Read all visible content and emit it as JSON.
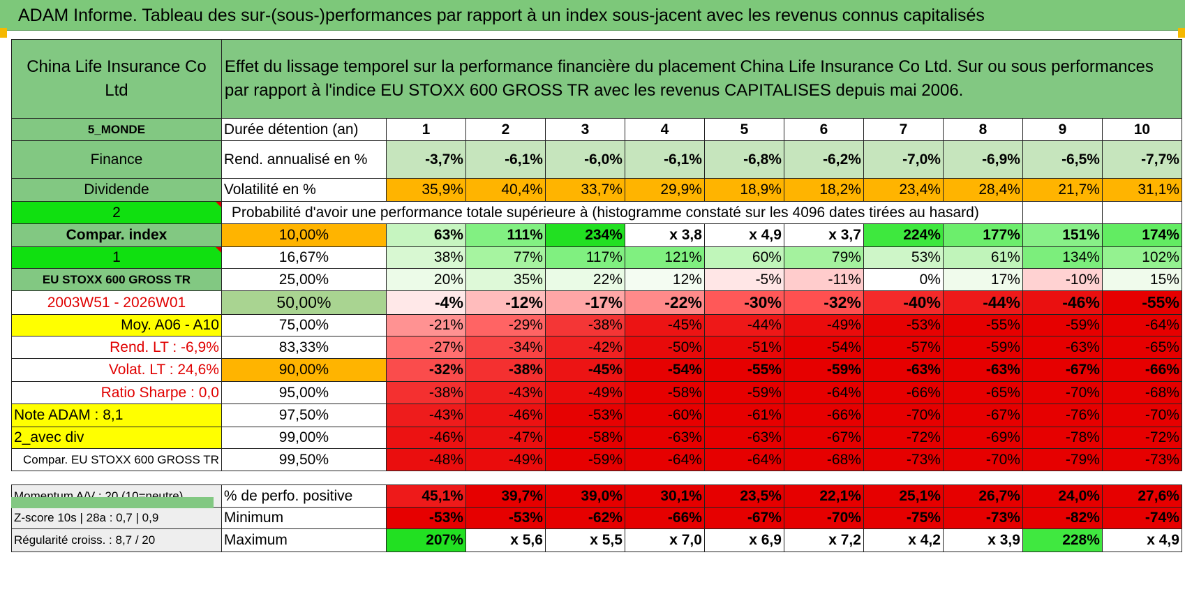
{
  "title": "ADAM Informe. Tableau des sur-(sous-)performances par rapport à un index sous-jacent avec les revenus connus capitalisés",
  "header": {
    "company": "China Life Insurance Co Ltd",
    "description": "Effet du lissage temporel sur la performance financière du placement China Life Insurance Co Ltd. Sur ou sous performances par rapport à l'indice EU STOXX 600 GROSS TR avec les revenus CAPITALISES depuis mai 2006."
  },
  "left_labels": {
    "region": "5_MONDE",
    "sector": "Finance",
    "type": "Dividende",
    "code1": "2",
    "compar": "Compar. index",
    "code2": "1",
    "index_name": "EU STOXX 600 GROSS TR",
    "period": "2003W51 - 2026W01",
    "moy": "Moy. A06 - A10",
    "rend_lt": "Rend. LT :    -6,9%",
    "volat_lt": "Volat. LT :    24,6%",
    "sharpe": "Ratio Sharpe :     0,0",
    "note": "Note ADAM : 8,1",
    "avec_div": "2_avec div",
    "compar_index": "Compar. EU STOXX 600 GROSS TR",
    "momentum": "Momentum A/V : 20 (10=neutre)",
    "zscore": "Z-score 10s | 28a : 0,7 | 0,9",
    "regularite": "Régularité croiss. : 8,7 / 20"
  },
  "row_labels": {
    "duree": "Durée détention (an)",
    "rend": "Rend. annualisé en %",
    "vol": "Volatilité en %",
    "proba": "Probabilité d'avoir une performance totale supérieure à (histogramme constaté sur les 4096 dates tirées au hasard)",
    "positive": "% de perfo. positive",
    "minimum": "Minimum",
    "maximum": "Maximum"
  },
  "years": [
    "1",
    "2",
    "3",
    "4",
    "5",
    "6",
    "7",
    "8",
    "9",
    "10"
  ],
  "rend": [
    "-3,7%",
    "-6,1%",
    "-6,0%",
    "-6,1%",
    "-6,8%",
    "-6,2%",
    "-7,0%",
    "-6,9%",
    "-6,5%",
    "-7,7%"
  ],
  "vol": [
    "35,9%",
    "40,4%",
    "33,7%",
    "29,9%",
    "18,9%",
    "18,2%",
    "23,4%",
    "28,4%",
    "21,7%",
    "31,1%"
  ],
  "percentiles": [
    {
      "p": "10,00%",
      "values": [
        "63%",
        "111%",
        "234%",
        "x 3,8",
        "x 4,9",
        "x 3,7",
        "224%",
        "177%",
        "151%",
        "174%"
      ],
      "colors": [
        "#c6f5c0",
        "#82f082",
        "#22e022",
        "#ffffff",
        "#ffffff",
        "#ffffff",
        "#3ee83e",
        "#6cee6c",
        "#88f088",
        "#62ec62"
      ]
    },
    {
      "p": "16,67%",
      "values": [
        "38%",
        "77%",
        "117%",
        "121%",
        "60%",
        "79%",
        "53%",
        "61%",
        "134%",
        "102%"
      ],
      "colors": [
        "#d8f8d2",
        "#a6f4a0",
        "#80f080",
        "#80f080",
        "#c0f6ba",
        "#a4f29e",
        "#cef6c8",
        "#c0f4ba",
        "#7cee7c",
        "#94f290"
      ]
    },
    {
      "p": "25,00%",
      "values": [
        "20%",
        "35%",
        "22%",
        "12%",
        "-5%",
        "-11%",
        "0%",
        "17%",
        "-10%",
        "15%"
      ],
      "colors": [
        "#ecfbe8",
        "#def9d8",
        "#eafbe6",
        "#f4fcf2",
        "#ffe6e6",
        "#ffcccc",
        "#ffffff",
        "#f0fbec",
        "#ffd2d2",
        "#f0fbec"
      ]
    },
    {
      "p": "50,00%",
      "values": [
        "-4%",
        "-12%",
        "-17%",
        "-22%",
        "-30%",
        "-32%",
        "-40%",
        "-44%",
        "-46%",
        "-55%"
      ],
      "colors": [
        "#ffe8e8",
        "#ffbcbc",
        "#ffa6a6",
        "#ff8a8a",
        "#ff5858",
        "#ff5050",
        "#f42a2a",
        "#ee1a1a",
        "#ea1010",
        "#e60000"
      ]
    },
    {
      "p": "75,00%",
      "values": [
        "-21%",
        "-29%",
        "-38%",
        "-45%",
        "-44%",
        "-49%",
        "-53%",
        "-55%",
        "-59%",
        "-64%"
      ],
      "colors": [
        "#ff9292",
        "#ff6464",
        "#f43636",
        "#ec1414",
        "#ee1818",
        "#ea0c0c",
        "#e60202",
        "#e60000",
        "#e60000",
        "#e60000"
      ]
    },
    {
      "p": "83,33%",
      "values": [
        "-27%",
        "-34%",
        "-42%",
        "-50%",
        "-51%",
        "-54%",
        "-57%",
        "-59%",
        "-63%",
        "-65%"
      ],
      "colors": [
        "#ff7070",
        "#f84444",
        "#f02222",
        "#e80a0a",
        "#e80808",
        "#e60000",
        "#e60000",
        "#e60000",
        "#e60000",
        "#e60000"
      ]
    },
    {
      "p": "90,00%",
      "values": [
        "-32%",
        "-38%",
        "-45%",
        "-54%",
        "-55%",
        "-59%",
        "-63%",
        "-63%",
        "-67%",
        "-66%"
      ],
      "colors": [
        "#fa4c4c",
        "#f43030",
        "#ec1414",
        "#e60202",
        "#e60000",
        "#e60000",
        "#e60000",
        "#e60000",
        "#e60000",
        "#e60000"
      ]
    },
    {
      "p": "95,00%",
      "values": [
        "-38%",
        "-43%",
        "-49%",
        "-58%",
        "-59%",
        "-64%",
        "-66%",
        "-65%",
        "-70%",
        "-68%"
      ],
      "colors": [
        "#f43030",
        "#ee1c1c",
        "#ea0c0c",
        "#e60000",
        "#e60000",
        "#e60000",
        "#e60000",
        "#e60000",
        "#e60000",
        "#e60000"
      ]
    },
    {
      "p": "97,50%",
      "values": [
        "-43%",
        "-46%",
        "-53%",
        "-60%",
        "-61%",
        "-66%",
        "-70%",
        "-67%",
        "-76%",
        "-70%"
      ],
      "colors": [
        "#ee1c1c",
        "#ec1212",
        "#e60202",
        "#e60000",
        "#e60000",
        "#e60000",
        "#e60000",
        "#e60000",
        "#e60000",
        "#e60000"
      ]
    },
    {
      "p": "99,00%",
      "values": [
        "-46%",
        "-47%",
        "-58%",
        "-63%",
        "-63%",
        "-67%",
        "-72%",
        "-69%",
        "-78%",
        "-72%"
      ],
      "colors": [
        "#ec1212",
        "#ea1010",
        "#e60000",
        "#e60000",
        "#e60000",
        "#e60000",
        "#e60000",
        "#e60000",
        "#e60000",
        "#e60000"
      ]
    },
    {
      "p": "99,50%",
      "values": [
        "-48%",
        "-49%",
        "-59%",
        "-64%",
        "-64%",
        "-68%",
        "-73%",
        "-70%",
        "-79%",
        "-73%"
      ],
      "colors": [
        "#ea0e0e",
        "#ea0c0c",
        "#e60000",
        "#e60000",
        "#e60000",
        "#e60000",
        "#e60000",
        "#e60000",
        "#e60000",
        "#e60000"
      ]
    }
  ],
  "positive": [
    "45,1%",
    "39,7%",
    "39,0%",
    "30,1%",
    "23,5%",
    "22,1%",
    "25,1%",
    "26,7%",
    "24,0%",
    "27,6%"
  ],
  "minimum": [
    "-53%",
    "-53%",
    "-62%",
    "-66%",
    "-67%",
    "-70%",
    "-75%",
    "-73%",
    "-82%",
    "-74%"
  ],
  "maximum": [
    "207%",
    "x 5,6",
    "x 5,5",
    "x 7,0",
    "x 6,9",
    "x 7,2",
    "x 4,2",
    "x 3,9",
    "228%",
    "x 4,9"
  ],
  "maximum_colors": [
    "#22e022",
    "#ffffff",
    "#ffffff",
    "#ffffff",
    "#ffffff",
    "#ffffff",
    "#ffffff",
    "#ffffff",
    "#40e840",
    "#ffffff"
  ],
  "colors": {
    "header_green": "#82c882",
    "bright_green": "#10e010",
    "yellow": "#ffff00",
    "orange": "#ffb400",
    "red": "#e60000"
  }
}
